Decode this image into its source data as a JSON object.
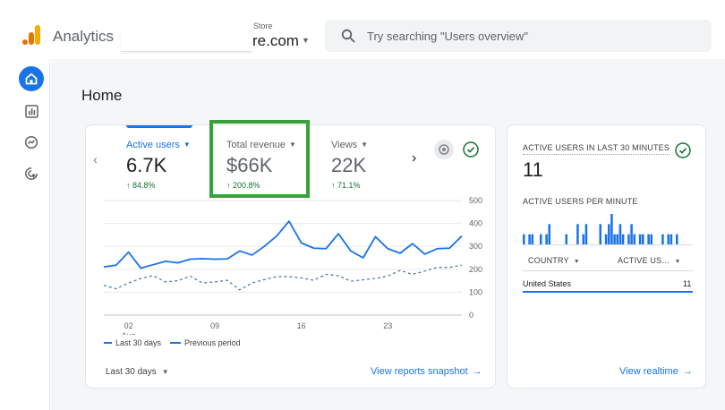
{
  "app": {
    "name": "Analytics",
    "account_sub": "Store",
    "account_name": "re.com",
    "search_placeholder": "Try searching \"Users overview\""
  },
  "colors": {
    "accent": "#1a73e8",
    "positive": "#137333",
    "highlight_box": "#38a23a",
    "logo_orange": "#f9ab00",
    "logo_dark_orange": "#e37400"
  },
  "nav": [
    {
      "icon": "home-icon",
      "active": true
    },
    {
      "icon": "reports-icon",
      "active": false
    },
    {
      "icon": "explore-icon",
      "active": false
    },
    {
      "icon": "advertising-icon",
      "active": false
    }
  ],
  "page": {
    "title": "Home"
  },
  "metrics": [
    {
      "label": "Active users",
      "value": "6.7K",
      "delta": "↑ 84.8%",
      "active": true
    },
    {
      "label": "Total revenue",
      "value": "$66K",
      "delta": "↑ 200.8%",
      "active": false
    },
    {
      "label": "Views",
      "value": "22K",
      "delta": "↑ 71.1%",
      "active": false
    }
  ],
  "chart_data": {
    "type": "line",
    "y_ticks": [
      "500",
      "400",
      "300",
      "200",
      "100",
      "0"
    ],
    "ylim": [
      0,
      500
    ],
    "x_ticks": [
      {
        "label": "02",
        "sublabel": "Aug",
        "day": 2
      },
      {
        "label": "09",
        "day": 9
      },
      {
        "label": "16",
        "day": 16
      },
      {
        "label": "23",
        "day": 23
      }
    ],
    "x_days": [
      0,
      1,
      2,
      3,
      4,
      5,
      6,
      7,
      8,
      9,
      10,
      11,
      12,
      13,
      14,
      15,
      16,
      17,
      18,
      19,
      20,
      21,
      22,
      23,
      24,
      25,
      26,
      27,
      28,
      29
    ],
    "series": [
      {
        "name": "Last 30 days",
        "style": "solid",
        "values": [
          210,
          218,
          275,
          205,
          220,
          235,
          228,
          244,
          246,
          244,
          245,
          280,
          262,
          300,
          345,
          410,
          315,
          292,
          290,
          355,
          280,
          250,
          342,
          290,
          270,
          312,
          266,
          290,
          292,
          345
        ]
      },
      {
        "name": "Previous period",
        "style": "dashed",
        "values": [
          130,
          115,
          140,
          160,
          172,
          145,
          150,
          170,
          140,
          145,
          152,
          110,
          140,
          155,
          168,
          168,
          162,
          152,
          178,
          172,
          148,
          154,
          160,
          170,
          195,
          178,
          192,
          208,
          208,
          218
        ]
      }
    ],
    "legend": [
      "Last 30 days",
      "Previous period"
    ]
  },
  "main_card": {
    "date_range": "Last 30 days",
    "link": "View reports snapshot"
  },
  "realtime": {
    "title": "ACTIVE USERS IN LAST 30 MINUTES",
    "value": "11",
    "per_minute_label": "ACTIVE USERS PER MINUTE",
    "per_minute_values": [
      1,
      0,
      1,
      1,
      0,
      0,
      1,
      0,
      1,
      2,
      0,
      0,
      0,
      0,
      0,
      1,
      0,
      0,
      0,
      2,
      0,
      1,
      2,
      0,
      0,
      0,
      0,
      2,
      0,
      1,
      2,
      3,
      1,
      1,
      2,
      1,
      0,
      1,
      2,
      1,
      0,
      1,
      1,
      0,
      1,
      1,
      0,
      0,
      0,
      1,
      0,
      1,
      1,
      0,
      1,
      0,
      0,
      0,
      0,
      0
    ],
    "columns": [
      "COUNTRY",
      "ACTIVE US…"
    ],
    "rows": [
      {
        "country": "United States",
        "users": "11"
      }
    ],
    "link": "View realtime"
  }
}
